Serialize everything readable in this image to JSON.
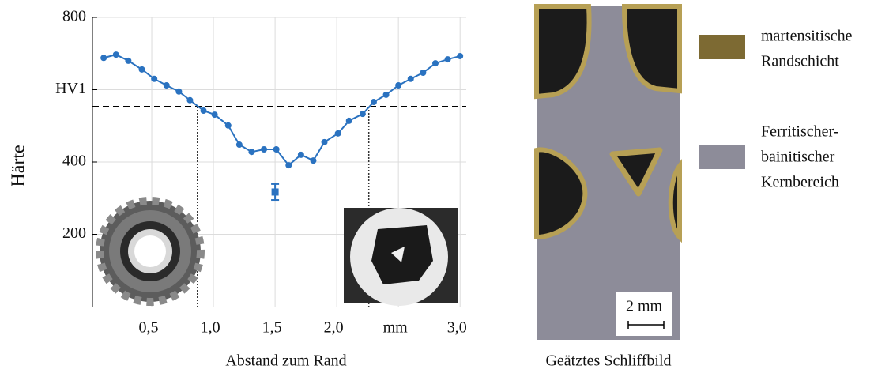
{
  "chart_data": {
    "type": "line",
    "xlabel": "Abstand zum Rand",
    "ylabel": "Härte",
    "xlim": [
      0,
      3.05
    ],
    "ylim": [
      0,
      800
    ],
    "xticks": [
      {
        "value": 0.5,
        "label": "0,5"
      },
      {
        "value": 1.0,
        "label": "1,0"
      },
      {
        "value": 1.5,
        "label": "1,5"
      },
      {
        "value": 2.0,
        "label": "2,0"
      },
      {
        "value": 2.5,
        "label": "mm"
      },
      {
        "value": 3.0,
        "label": "3,0"
      }
    ],
    "yticks": [
      200,
      400,
      {
        "value": 600,
        "label": "HV1"
      },
      800
    ],
    "grid": true,
    "series": [
      {
        "color": "#2a72c0",
        "x": [
          0.11,
          0.21,
          0.31,
          0.42,
          0.52,
          0.62,
          0.72,
          0.81,
          0.92,
          1.01,
          1.12,
          1.21,
          1.31,
          1.41,
          1.51,
          1.61,
          1.71,
          1.81,
          1.9,
          2.01,
          2.1,
          2.21,
          2.3,
          2.4,
          2.5,
          2.6,
          2.7,
          2.8,
          2.9,
          3.0
        ],
        "values": [
          688,
          697,
          680,
          656,
          630,
          612,
          595,
          571,
          542,
          531,
          501,
          448,
          428,
          435,
          435,
          391,
          420,
          404,
          455,
          479,
          514,
          533,
          566,
          586,
          612,
          630,
          647,
          673,
          684,
          693
        ]
      }
    ],
    "outlier": {
      "x": 1.5,
      "value": 317,
      "error": 22,
      "color": "#2a72c0"
    },
    "threshold": 553,
    "crossings": [
      0.87,
      2.26
    ]
  },
  "micrograph": {
    "caption": "Geätztes Schliffbild",
    "scale_label": "2 mm",
    "legend": [
      {
        "color": "#7d6a33",
        "lines": [
          "martensitische",
          "Randschicht"
        ]
      },
      {
        "color": "#8d8c99",
        "lines": [
          "Ferritischer-",
          "bainitischer",
          "Kernbereich"
        ]
      }
    ]
  }
}
